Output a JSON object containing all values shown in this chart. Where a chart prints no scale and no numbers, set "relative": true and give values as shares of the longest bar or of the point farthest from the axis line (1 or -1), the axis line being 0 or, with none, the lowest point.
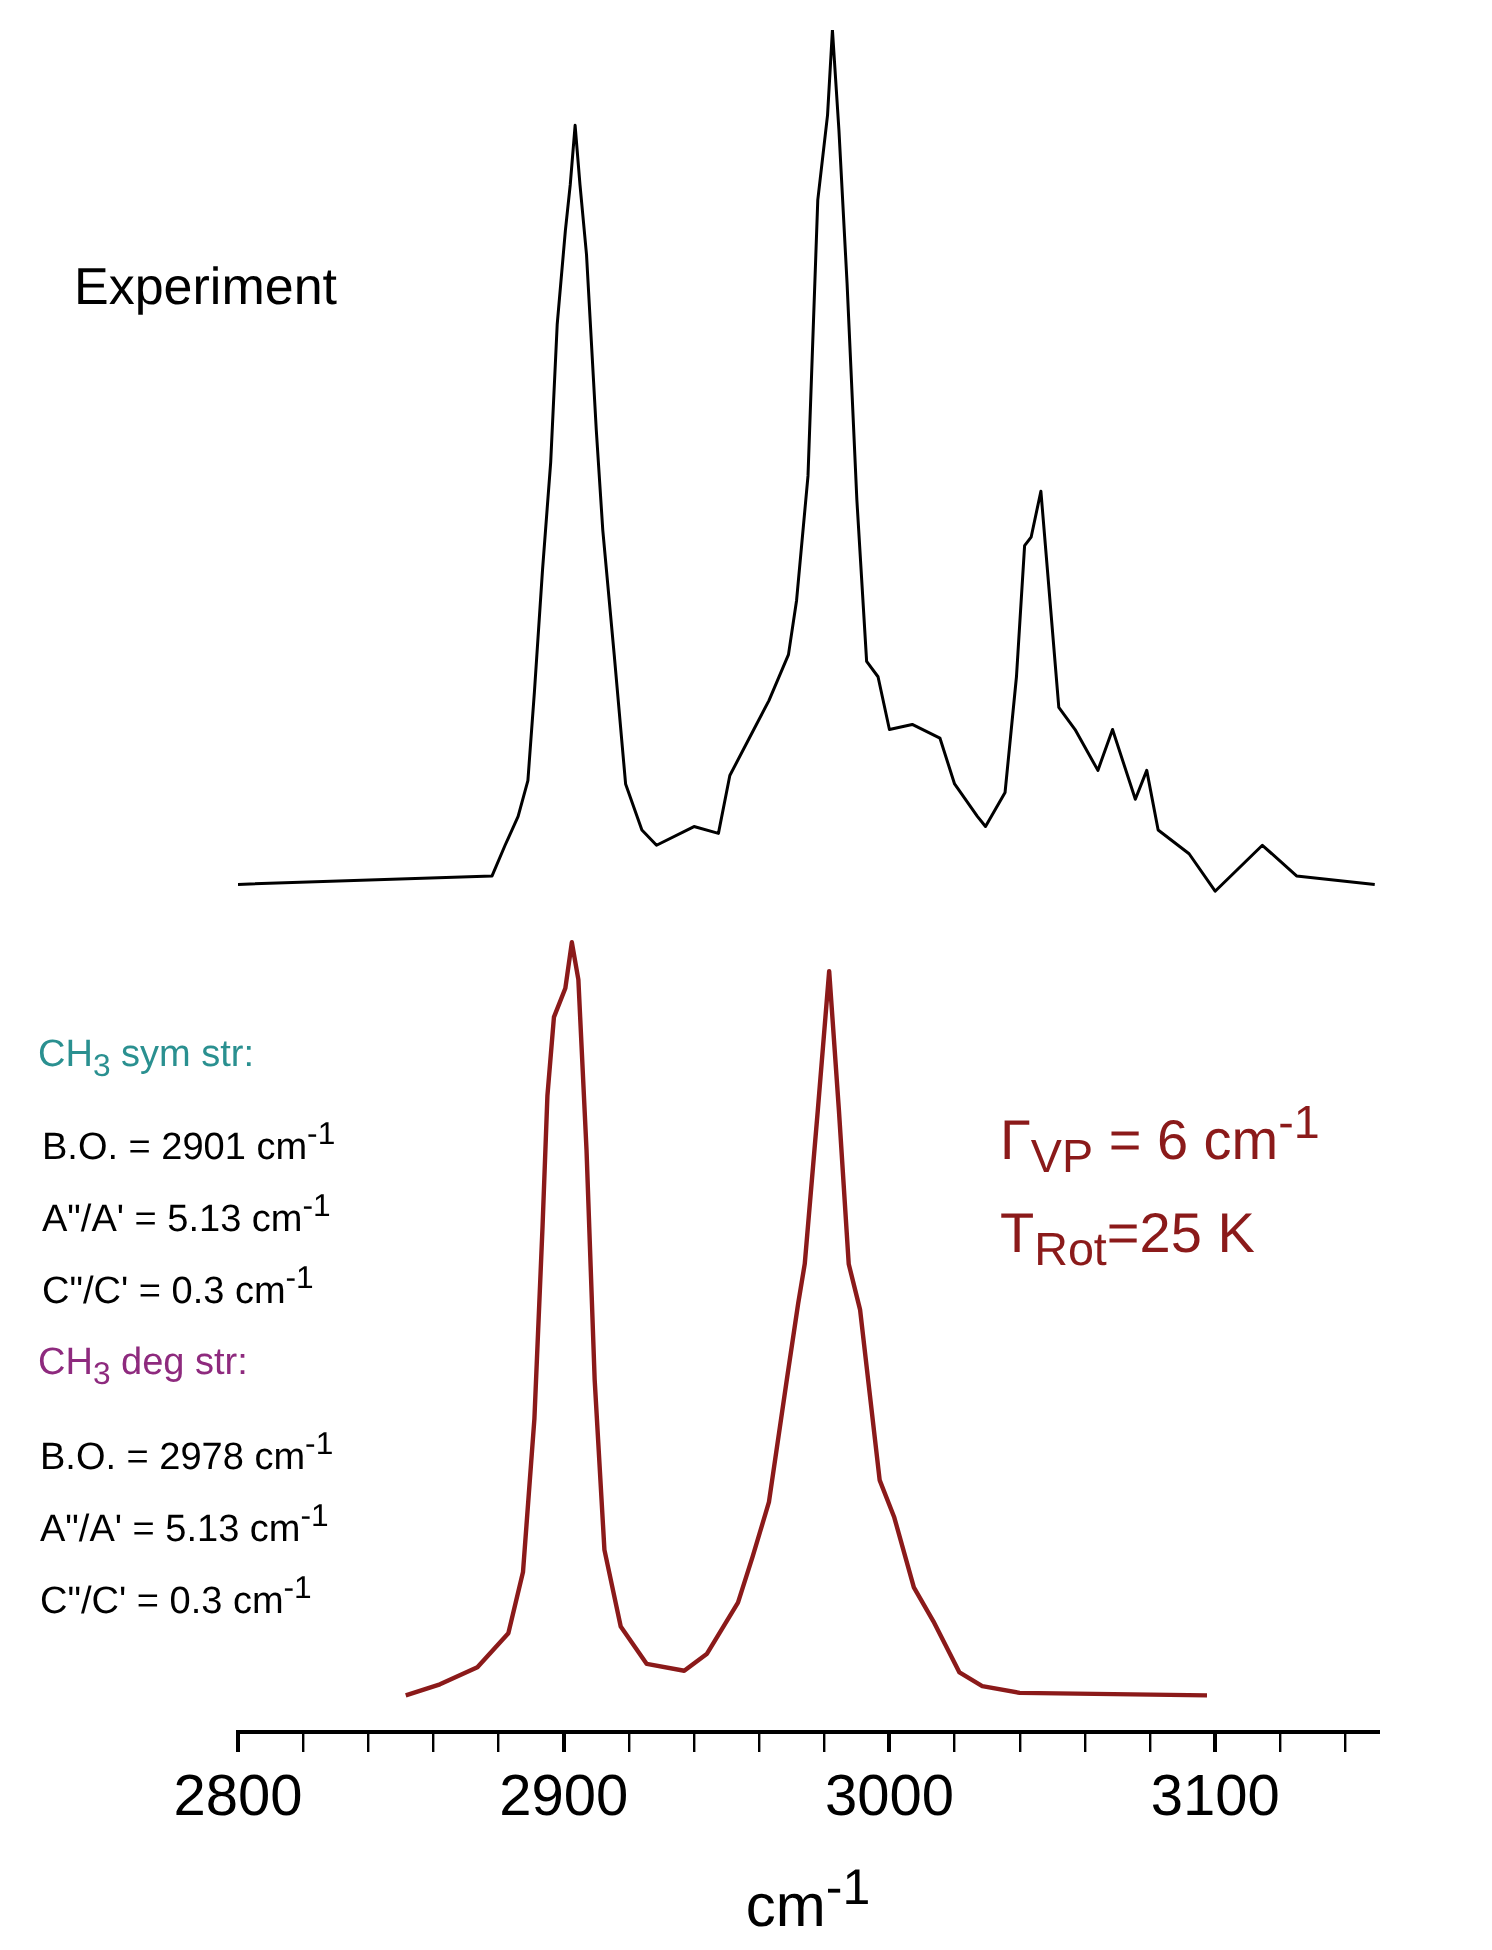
{
  "chart_data": {
    "type": "line",
    "relative": true,
    "xlabel": "cm$^{-1}$",
    "xlim": [
      2800,
      3150
    ],
    "xticks": [
      2800,
      {
        "value": 2820,
        "label": null
      },
      {
        "value": 2840,
        "label": null
      },
      {
        "value": 2860,
        "label": null
      },
      {
        "value": 2880,
        "label": null
      },
      2900,
      {
        "value": 2920,
        "label": null
      },
      {
        "value": 2940,
        "label": null
      },
      {
        "value": 2960,
        "label": null
      },
      {
        "value": 2980,
        "label": null
      },
      3000,
      {
        "value": 3020,
        "label": null
      },
      {
        "value": 3040,
        "label": null
      },
      {
        "value": 3060,
        "label": null
      },
      {
        "value": 3080,
        "label": null
      },
      3100,
      {
        "value": 3120,
        "label": null
      },
      {
        "value": 3140,
        "label": null
      }
    ],
    "grid": false,
    "legend": false,
    "marker": "none",
    "line_style": "solid",
    "annotations": [
      "Experiment",
      "CH$_{3}$ sym str:",
      "B.O. = 2901 cm$^{-1}$",
      "A\"/A' = 5.13 cm$^{-1}$",
      "C\"/C' = 0.3 cm$^{-1}$",
      "CH$_{3}$ deg str:",
      "B.O. = 2978 cm$^{-1}$",
      "A\"/A' = 5.13 cm$^{-1}$",
      "C\"/C' = 0.3 cm$^{-1}$",
      "Γ$_{VP}$ = 6 cm$^{-1}$",
      "T$_{Rot}$=25 K"
    ],
    "series": [
      {
        "color": "#000000",
        "x": [
          2800,
          2878,
          2882,
          2886,
          2889,
          2891,
          2893.5,
          2896,
          2898,
          2900.5,
          2902,
          2903.5,
          2905,
          2907,
          2910,
          2912,
          2915.5,
          2919,
          2924,
          2928.5,
          2940,
          2947.5,
          2951,
          2957,
          2963,
          2969,
          2971.5,
          2975,
          2978,
          2981,
          2982.5,
          2984.5,
          2987,
          2990,
          2993,
          2996.5,
          3000,
          3007,
          3015.5,
          3020,
          3027,
          3029.5,
          3035.5,
          3039,
          3041.5,
          3043.5,
          3046.5,
          3048.5,
          3052,
          3057,
          3064,
          3068.5,
          3075.5,
          3079,
          3082.5,
          3092,
          3100,
          3114.5,
          3125,
          3149
        ],
        "values": [
          0.498,
          0.503,
          0.521,
          0.538,
          0.559,
          0.611,
          0.683,
          0.746,
          0.827,
          0.882,
          0.909,
          0.944,
          0.909,
          0.868,
          0.765,
          0.706,
          0.633,
          0.557,
          0.53,
          0.521,
          0.532,
          0.528,
          0.562,
          0.584,
          0.606,
          0.633,
          0.665,
          0.738,
          0.9,
          0.95,
          1.0,
          0.941,
          0.851,
          0.724,
          0.629,
          0.62,
          0.589,
          0.592,
          0.584,
          0.557,
          0.538,
          0.532,
          0.552,
          0.62,
          0.697,
          0.702,
          0.729,
          0.683,
          0.602,
          0.589,
          0.565,
          0.589,
          0.548,
          0.565,
          0.53,
          0.516,
          0.494,
          0.521,
          0.503,
          0.498
        ]
      },
      {
        "color": "#8b1a1a",
        "x": [
          2851.5,
          2862,
          2873.5,
          2883,
          2887.5,
          2891,
          2893.5,
          2895,
          2897,
          2900.5,
          2902.5,
          2904.5,
          2907,
          2909.5,
          2912.5,
          2917.5,
          2925.5,
          2937,
          2944,
          2953.5,
          2958,
          2963,
          2968.5,
          2972,
          2974,
          2978,
          2981.5,
          2984.5,
          2987.5,
          2991,
          2997,
          3001.5,
          3007.5,
          3013.5,
          3021.5,
          3028.5,
          3040,
          3097.5
        ],
        "values": [
          0.0215,
          0.028,
          0.038,
          0.058,
          0.094,
          0.184,
          0.297,
          0.374,
          0.42,
          0.437,
          0.464,
          0.442,
          0.342,
          0.207,
          0.107,
          0.062,
          0.04,
          0.036,
          0.046,
          0.076,
          0.103,
          0.135,
          0.207,
          0.252,
          0.275,
          0.365,
          0.447,
          0.365,
          0.275,
          0.248,
          0.148,
          0.126,
          0.085,
          0.065,
          0.035,
          0.027,
          0.023,
          0.0215
        ]
      }
    ]
  }
}
